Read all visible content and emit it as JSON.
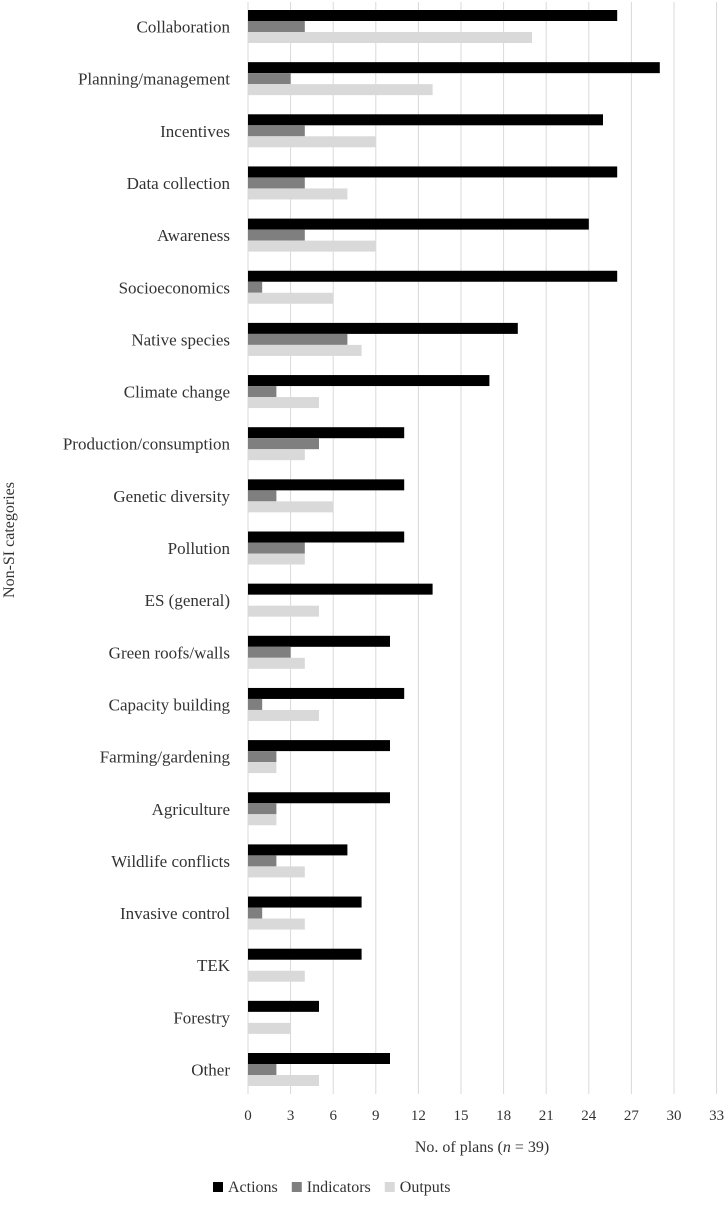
{
  "chart_data": {
    "type": "bar",
    "orientation": "horizontal",
    "categories": [
      "Collaboration",
      "Planning/management",
      "Incentives",
      "Data collection",
      "Awareness",
      "Socioeconomics",
      "Native species",
      "Climate change",
      "Production/consumption",
      "Genetic diversity",
      "Pollution",
      "ES (general)",
      "Green roofs/walls",
      "Capacity building",
      "Farming/gardening",
      "Agriculture",
      "Wildlife conflicts",
      "Invasive control",
      "TEK",
      "Forestry",
      "Other"
    ],
    "series": [
      {
        "name": "Actions",
        "color": "#000000",
        "values": [
          26,
          29,
          25,
          26,
          24,
          26,
          19,
          17,
          11,
          11,
          11,
          13,
          10,
          11,
          10,
          10,
          7,
          8,
          8,
          5,
          10
        ]
      },
      {
        "name": "Indicators",
        "color": "#7f7f7f",
        "values": [
          4,
          3,
          4,
          4,
          4,
          1,
          7,
          2,
          5,
          2,
          4,
          0,
          3,
          1,
          2,
          2,
          2,
          1,
          0,
          0,
          2
        ]
      },
      {
        "name": "Outputs",
        "color": "#d9d9d9",
        "values": [
          20,
          13,
          9,
          7,
          9,
          6,
          8,
          5,
          4,
          6,
          4,
          5,
          4,
          5,
          2,
          2,
          4,
          4,
          4,
          3,
          5
        ]
      }
    ],
    "xlim": [
      0,
      33
    ],
    "xticks": [
      0,
      3,
      6,
      9,
      12,
      15,
      18,
      21,
      24,
      27,
      30,
      33
    ],
    "xlabel_prefix": "No. of plans (",
    "xlabel_n": "n",
    "xlabel_suffix": " = 39)",
    "ylabel": "Non-SI categories",
    "grid": "vertical",
    "legend_position": "bottom"
  }
}
